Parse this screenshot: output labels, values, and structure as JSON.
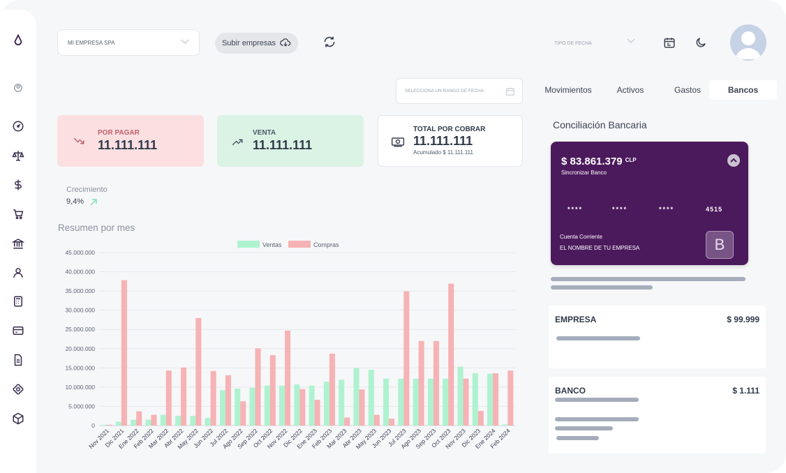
{
  "header": {
    "company_select": "MI EMPRESA SPA",
    "upload_button": "Subir empresas",
    "date_type_placeholder": "TIPO DE FECHA",
    "date_range_placeholder": "SELECCIONA UN RANGO DE FECHA"
  },
  "sidebar": {
    "items": [
      "logo-icon",
      "user-circle-icon",
      "dashboard-icon",
      "balance-scale-icon",
      "dollar-icon",
      "cart-icon",
      "bank-icon",
      "person-icon",
      "calculator-icon",
      "card-icon",
      "document-icon",
      "puzzle-icon",
      "box-icon"
    ]
  },
  "kpis": {
    "por_pagar": {
      "label": "POR PAGAR",
      "value": "11.111.111"
    },
    "venta": {
      "label": "VENTA",
      "value": "11.111.111"
    },
    "total_cobrar": {
      "label": "TOTAL POR COBRAR",
      "value": "11.111.111",
      "sub": "Acumulado $ 11.111.111"
    }
  },
  "growth": {
    "label": "Crecimiento",
    "value": "9,4%"
  },
  "chart_section": {
    "title": "Resumen por mes"
  },
  "chart_data": {
    "type": "bar",
    "categories": [
      "Nov 2021",
      "Dic 2021",
      "Ene 2022",
      "Feb 2022",
      "Mar 2022",
      "Abr 2022",
      "May 2022",
      "Jun 2022",
      "Jul 2022",
      "Ago 2022",
      "Sep 2022",
      "Oct 2022",
      "Nov 2022",
      "Dic 2022",
      "Ene 2023",
      "Feb 2023",
      "Mar 2023",
      "Abr 2023",
      "May 2023",
      "Jun 2023",
      "Jul 2023",
      "Ago 2023",
      "Sep 2023",
      "Oct 2023",
      "Nov 2023",
      "Dic 2023",
      "Ene 2024",
      "Feb 2024"
    ],
    "series": [
      {
        "name": "Ventas",
        "color": "#aef2cf",
        "values": [
          200000,
          1000000,
          1500000,
          1500000,
          2800000,
          2500000,
          2500000,
          2000000,
          9200000,
          9600000,
          9800000,
          10400000,
          10400000,
          10700000,
          10400000,
          11400000,
          11900000,
          15000000,
          14500000,
          12200000,
          12200000,
          12200000,
          12200000,
          12200000,
          15300000,
          13600000,
          13500000,
          300000
        ]
      },
      {
        "name": "Compras",
        "color": "#f6b2b4",
        "values": [
          200000,
          37800000,
          3700000,
          2800000,
          14300000,
          15100000,
          28000000,
          14200000,
          13100000,
          6300000,
          20100000,
          18300000,
          24700000,
          9500000,
          6700000,
          18700000,
          2100000,
          9400000,
          2800000,
          1800000,
          34900000,
          22000000,
          22000000,
          36900000,
          12200000,
          3800000,
          13600000,
          14300000
        ]
      }
    ],
    "yticks": [
      "0",
      "5.000.000",
      "10.000.000",
      "15.000.000",
      "20.000.000",
      "25.000.000",
      "30.000.000",
      "35.000.000",
      "40.000.000",
      "45.000.000"
    ],
    "ylim": [
      0,
      45000000
    ],
    "grid": true,
    "legend": "top-center"
  },
  "tabs": [
    {
      "label": "Movimientos",
      "active": false
    },
    {
      "label": "Activos",
      "active": false
    },
    {
      "label": "Gastos",
      "active": false
    },
    {
      "label": "Bancos",
      "active": true
    }
  ],
  "bank": {
    "section_title": "Conciliación Bancaria",
    "card": {
      "amount": "$ 83.861.379",
      "currency": "CLP",
      "sync_label": "Sincronizar Banco",
      "masked_groups": [
        "****",
        "****",
        "****"
      ],
      "last4": "4515",
      "account_type": "Cuenta Corriente",
      "account_name": "EL NOMBRE DE TU EMPRESA",
      "logo_letter": "B",
      "color": "#4b1a5c"
    }
  },
  "summary": {
    "empresa": {
      "label": "EMPRESA",
      "value": "$ 99.999"
    },
    "banco": {
      "label": "BANCO",
      "value": "$ 1.111"
    }
  }
}
